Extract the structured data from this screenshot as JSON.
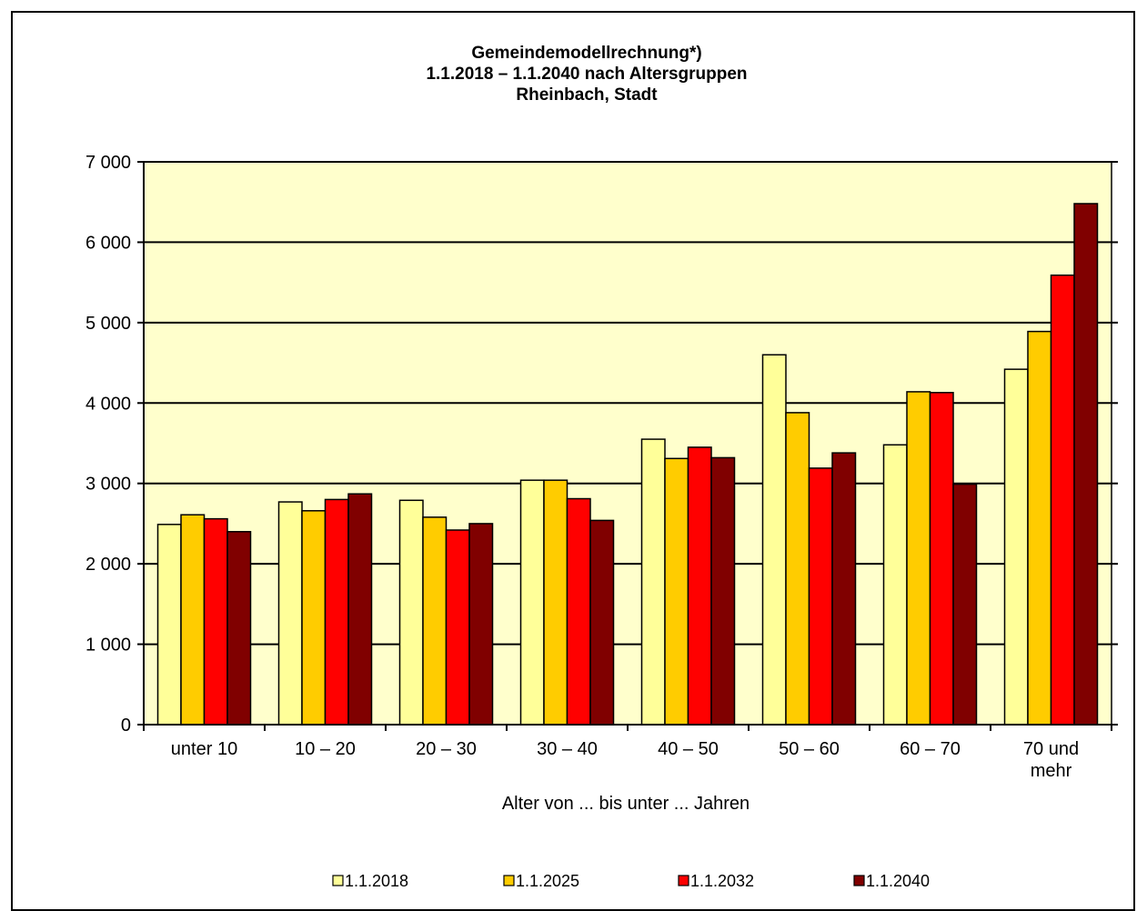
{
  "chart_data": {
    "type": "bar",
    "title_lines": [
      "Gemeindemodellrechnung*)",
      "1.1.2018 – 1.1.2040 nach Altersgruppen",
      "Rheinbach, Stadt"
    ],
    "xlabel": "Alter von ... bis unter ... Jahren",
    "ylabel": "",
    "ylim": [
      0,
      7000
    ],
    "yticks": [
      0,
      1000,
      2000,
      3000,
      4000,
      5000,
      6000,
      7000
    ],
    "ytick_labels": [
      "0",
      "1 000",
      "2 000",
      "3 000",
      "4 000",
      "5 000",
      "6 000",
      "7 000"
    ],
    "categories": [
      [
        "unter 10"
      ],
      [
        "10 – 20"
      ],
      [
        "20 – 30"
      ],
      [
        "30 – 40"
      ],
      [
        "40 – 50"
      ],
      [
        "50 – 60"
      ],
      [
        "60 – 70"
      ],
      [
        "70 und",
        "mehr"
      ]
    ],
    "series": [
      {
        "name": "1.1.2018",
        "color": "#FFFF99",
        "values": [
          2490,
          2770,
          2790,
          3040,
          3550,
          4600,
          3480,
          4420
        ]
      },
      {
        "name": "1.1.2025",
        "color": "#FFCC00",
        "values": [
          2610,
          2660,
          2580,
          3040,
          3310,
          3880,
          4140,
          4890
        ]
      },
      {
        "name": "1.1.2032",
        "color": "#FF0000",
        "values": [
          2560,
          2800,
          2420,
          2810,
          3450,
          3190,
          4130,
          5590
        ]
      },
      {
        "name": "1.1.2040",
        "color": "#800000",
        "values": [
          2400,
          2870,
          2500,
          2540,
          3320,
          3380,
          2990,
          6480
        ]
      }
    ],
    "grid": true,
    "plot_background": "#FFFFCC",
    "legend_position": "bottom"
  }
}
